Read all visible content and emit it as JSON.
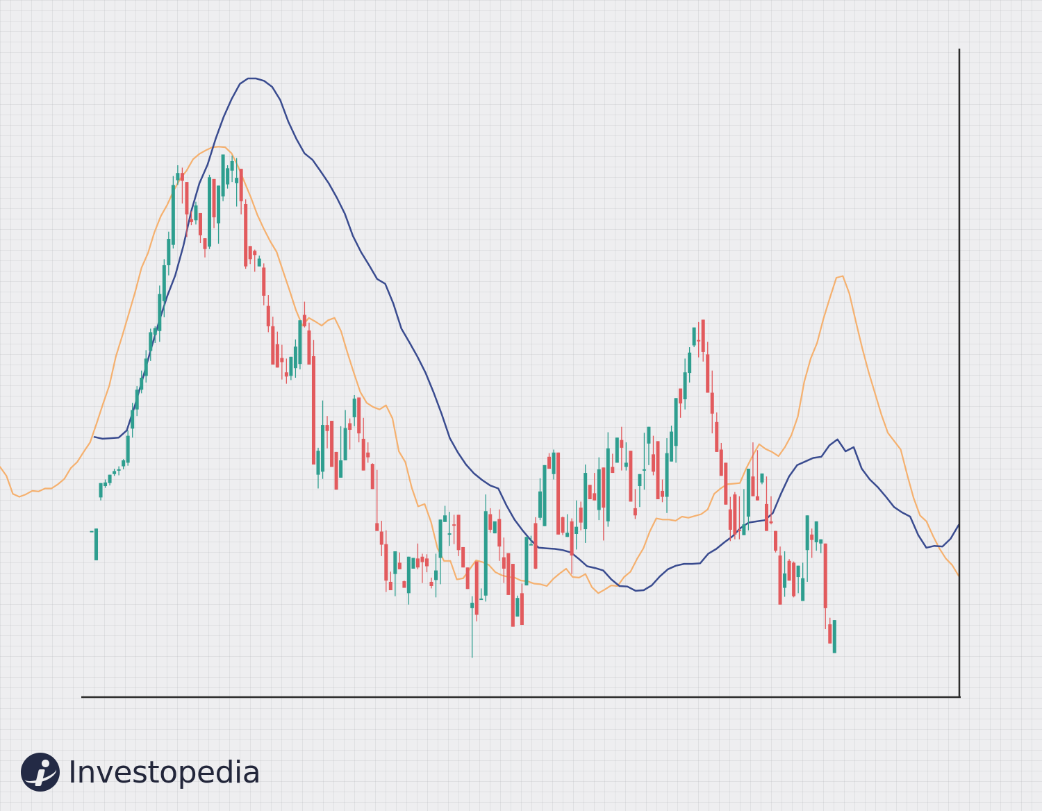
{
  "brand": {
    "name": "Investopedia",
    "logo_icon": "investopedia-logo-icon"
  },
  "colors": {
    "up": "#2e9e8f",
    "down": "#e25a5d",
    "fast_ma": "#f5b06e",
    "slow_ma": "#394b8f",
    "axis": "#2b2b2b"
  },
  "chart_data": {
    "type": "candlestick",
    "title": "",
    "xlabel": "",
    "ylabel": "",
    "ylim": [
      0,
      1000
    ],
    "grid": true,
    "candles": [
      [
        244,
        244,
        239,
        267
      ],
      [
        195,
        248,
        225,
        258
      ],
      [
        300,
        324,
        324,
        295
      ],
      [
        319,
        325,
        330,
        316
      ],
      [
        324,
        338,
        338,
        320
      ],
      [
        339,
        344,
        348,
        336
      ],
      [
        345,
        347,
        352,
        337
      ],
      [
        352,
        362,
        364,
        347
      ],
      [
        358,
        403,
        412,
        353
      ],
      [
        415,
        446,
        458,
        400
      ],
      [
        447,
        480,
        486,
        436
      ],
      [
        480,
        500,
        512,
        474
      ],
      [
        503,
        532,
        546,
        492
      ],
      [
        545,
        576,
        582,
        528
      ],
      [
        572,
        583,
        586,
        558
      ],
      [
        578,
        640,
        654,
        560
      ],
      [
        628,
        688,
        698,
        601
      ],
      [
        688,
        732,
        744,
        671
      ],
      [
        722,
        822,
        837,
        716
      ],
      [
        830,
        842,
        855,
        822
      ],
      [
        842,
        829,
        851,
        791
      ],
      [
        827,
        773,
        818,
        735
      ],
      [
        765,
        760,
        778,
        755
      ],
      [
        763,
        788,
        794,
        756
      ],
      [
        775,
        738,
        752,
        725
      ],
      [
        733,
        715,
        733,
        701
      ],
      [
        719,
        835,
        839,
        715
      ],
      [
        832,
        768,
        825,
        750
      ],
      [
        758,
        821,
        817,
        724
      ],
      [
        803,
        873,
        870,
        795
      ],
      [
        823,
        850,
        855,
        816
      ],
      [
        846,
        862,
        871,
        827
      ],
      [
        825,
        834,
        867,
        786
      ],
      [
        849,
        795,
        832,
        773
      ],
      [
        790,
        686,
        798,
        682
      ],
      [
        720,
        698,
        720,
        690
      ],
      [
        712,
        705,
        714,
        677
      ],
      [
        686,
        699,
        704,
        692
      ],
      [
        684,
        637,
        691,
        621
      ],
      [
        620,
        586,
        638,
        576
      ],
      [
        586,
        522,
        602,
        550
      ],
      [
        556,
        517,
        577,
        535
      ],
      [
        533,
        526,
        555,
        497
      ],
      [
        509,
        502,
        532,
        490
      ],
      [
        503,
        535,
        531,
        496
      ],
      [
        516,
        552,
        564,
        500
      ],
      [
        523,
        596,
        575,
        514
      ],
      [
        605,
        586,
        627,
        584
      ],
      [
        579,
        522,
        592,
        537
      ],
      [
        536,
        355,
        563,
        484
      ],
      [
        338,
        378,
        383,
        315
      ],
      [
        343,
        421,
        462,
        331
      ],
      [
        421,
        411,
        436,
        382
      ],
      [
        428,
        351,
        415,
        382
      ],
      [
        376,
        313,
        370,
        391
      ],
      [
        333,
        362,
        419,
        353
      ],
      [
        362,
        416,
        446,
        362
      ],
      [
        424,
        413,
        432,
        380
      ],
      [
        434,
        465,
        471,
        419
      ],
      [
        467,
        407,
        465,
        392
      ],
      [
        398,
        345,
        433,
        373
      ],
      [
        375,
        367,
        392,
        358
      ],
      [
        356,
        314,
        357,
        382
      ],
      [
        257,
        244,
        346,
        299
      ],
      [
        243,
        221,
        261,
        202
      ],
      [
        222,
        161,
        245,
        142
      ],
      [
        159,
        145,
        176,
        175
      ],
      [
        172,
        210,
        194,
        135
      ],
      [
        191,
        180,
        208,
        180
      ],
      [
        160,
        149,
        161,
        161
      ],
      [
        140,
        201,
        176,
        121
      ],
      [
        181,
        199,
        192,
        185
      ],
      [
        198,
        183,
        223,
        180
      ],
      [
        201,
        192,
        206,
        157
      ],
      [
        198,
        185,
        205,
        175
      ],
      [
        159,
        152,
        166,
        148
      ],
      [
        162,
        178,
        206,
        133
      ],
      [
        199,
        263,
        263,
        155
      ],
      [
        259,
        270,
        286,
        259
      ],
      [
        240,
        240,
        276,
        219
      ],
      [
        255,
        254,
        271,
        222
      ],
      [
        271,
        212,
        227,
        202
      ],
      [
        217,
        183,
        202,
        189
      ],
      [
        183,
        147,
        171,
        169
      ],
      [
        115,
        124,
        135,
        32
      ],
      [
        193,
        104,
        184,
        93
      ],
      [
        131,
        131,
        148,
        133
      ],
      [
        136,
        277,
        305,
        126
      ],
      [
        272,
        246,
        282,
        241
      ],
      [
        240,
        260,
        258,
        241
      ],
      [
        264,
        218,
        280,
        194
      ],
      [
        200,
        181,
        233,
        157
      ],
      [
        207,
        137,
        198,
        177
      ],
      [
        189,
        84,
        189,
        85
      ],
      [
        101,
        132,
        136,
        138
      ],
      [
        140,
        87,
        156,
        107
      ],
      [
        153,
        234,
        206,
        164
      ],
      [
        221,
        222,
        236,
        252
      ],
      [
        257,
        181,
        267,
        180
      ],
      [
        266,
        310,
        332,
        262
      ],
      [
        252,
        354,
        348,
        288
      ],
      [
        368,
        348,
        374,
        368
      ],
      [
        339,
        375,
        380,
        330
      ],
      [
        375,
        238,
        361,
        317
      ],
      [
        267,
        241,
        268,
        237
      ],
      [
        234,
        241,
        272,
        240
      ],
      [
        260,
        203,
        265,
        172
      ],
      [
        239,
        251,
        295,
        213
      ],
      [
        283,
        258,
        293,
        245
      ],
      [
        247,
        341,
        355,
        224
      ],
      [
        321,
        297,
        321,
        304
      ],
      [
        307,
        295,
        341,
        336
      ],
      [
        279,
        347,
        367,
        262
      ],
      [
        350,
        283,
        347,
        228
      ],
      [
        260,
        382,
        409,
        251
      ],
      [
        351,
        341,
        373,
        354
      ],
      [
        358,
        400,
        373,
        385
      ],
      [
        396,
        383,
        418,
        345
      ],
      [
        351,
        358,
        392,
        345
      ],
      [
        378,
        293,
        347,
        354
      ],
      [
        282,
        270,
        314,
        264
      ],
      [
        319,
        339,
        322,
        284
      ],
      [
        347,
        347,
        408,
        313
      ],
      [
        390,
        418,
        408,
        354
      ],
      [
        372,
        343,
        403,
        337
      ],
      [
        394,
        297,
        370,
        381
      ],
      [
        311,
        301,
        330,
        292
      ],
      [
        301,
        374,
        399,
        274
      ],
      [
        360,
        410,
        420,
        360
      ],
      [
        386,
        466,
        454,
        358
      ],
      [
        482,
        457,
        478,
        433
      ],
      [
        464,
        509,
        532,
        447
      ],
      [
        508,
        542,
        551,
        492
      ],
      [
        554,
        584,
        582,
        551
      ],
      [
        563,
        562,
        593,
        534
      ],
      [
        597,
        543,
        584,
        527
      ],
      [
        539,
        475,
        560,
        515
      ],
      [
        475,
        440,
        512,
        407
      ],
      [
        426,
        376,
        442,
        393
      ],
      [
        380,
        336,
        391,
        352
      ],
      [
        358,
        288,
        350,
        320
      ],
      [
        280,
        246,
        301,
        227
      ],
      [
        305,
        238,
        309,
        230
      ],
      [
        246,
        244,
        302,
        230
      ],
      [
        237,
        255,
        314,
        240
      ],
      [
        268,
        348,
        330,
        245
      ],
      [
        335,
        302,
        392,
        319
      ],
      [
        302,
        295,
        379,
        330
      ],
      [
        325,
        340,
        339,
        322
      ],
      [
        289,
        244,
        335,
        290
      ],
      [
        260,
        257,
        302,
        255
      ],
      [
        244,
        211,
        220,
        208
      ],
      [
        203,
        121,
        218,
        170
      ],
      [
        149,
        173,
        210,
        134
      ],
      [
        194,
        161,
        197,
        184
      ],
      [
        191,
        135,
        193,
        133
      ],
      [
        167,
        186,
        181,
        140
      ],
      [
        127,
        165,
        191,
        138
      ],
      [
        212,
        270,
        260,
        159
      ],
      [
        238,
        229,
        248,
        199
      ],
      [
        225,
        260,
        247,
        211
      ],
      [
        223,
        230,
        224,
        207
      ],
      [
        223,
        115,
        198,
        80
      ],
      [
        88,
        56,
        99,
        70
      ],
      [
        40,
        95,
        58,
        82
      ]
    ],
    "series": [
      {
        "kind": "moving-average-fast",
        "values": [
          351,
          336,
          306,
          301,
          305,
          311,
          310,
          315,
          315,
          322,
          331,
          349,
          359,
          376,
          392,
          423,
          456,
          487,
          535,
          570,
          606,
          643,
          684,
          708,
          743,
          770,
          789,
          813,
          832,
          846,
          865,
          874,
          880,
          885,
          886,
          885,
          875,
          853,
          827,
          801,
          772,
          749,
          728,
          710,
          678,
          646,
          613,
          587,
          600,
          594,
          587,
          596,
          600,
          578,
          542,
          508,
          476,
          458,
          451,
          447,
          454,
          432,
          377,
          359,
          316,
          285,
          289,
          259,
          215,
          194,
          194,
          163,
          165,
          180,
          195,
          192,
          187,
          175,
          170,
          167,
          166,
          161,
          160,
          156,
          155,
          152,
          164,
          173,
          181,
          167,
          166,
          172,
          150,
          140,
          146,
          153,
          152,
          167,
          176,
          197,
          215,
          243,
          265,
          263,
          263,
          261,
          268,
          266,
          269,
          272,
          280,
          306,
          315,
          322,
          323,
          324,
          349,
          370,
          389,
          381,
          376,
          369,
          384,
          404,
          435,
          493,
          532,
          558,
          599,
          634,
          667,
          670,
          641,
          595,
          550,
          510,
          474,
          438,
          408,
          394,
          380,
          338,
          299,
          270,
          260,
          236,
          215,
          198,
          187,
          169
        ]
      },
      {
        "kind": "moving-average-slow",
        "values": [
          401,
          398,
          399,
          400,
          412,
          453,
          500,
          548,
          594,
          636,
          671,
          720,
          779,
          825,
          856,
          899,
          936,
          966,
          991,
          1000,
          1000,
          996,
          986,
          964,
          928,
          899,
          875,
          864,
          845,
          825,
          801,
          774,
          737,
          710,
          688,
          665,
          657,
          624,
          582,
          559,
          535,
          508,
          475,
          439,
          399,
          375,
          355,
          340,
          329,
          320,
          315,
          287,
          263,
          245,
          229,
          216,
          215,
          214,
          212,
          208,
          197,
          185,
          182,
          178,
          163,
          152,
          151,
          144,
          145,
          153,
          168,
          180,
          186,
          189,
          189,
          190,
          206,
          214,
          225,
          235,
          249,
          258,
          260,
          262,
          274,
          306,
          335,
          354,
          360,
          366,
          368,
          387,
          397,
          377,
          384,
          348,
          330,
          317,
          301,
          284,
          275,
          268,
          237,
          216,
          219,
          218,
          231,
          254
        ]
      }
    ]
  }
}
